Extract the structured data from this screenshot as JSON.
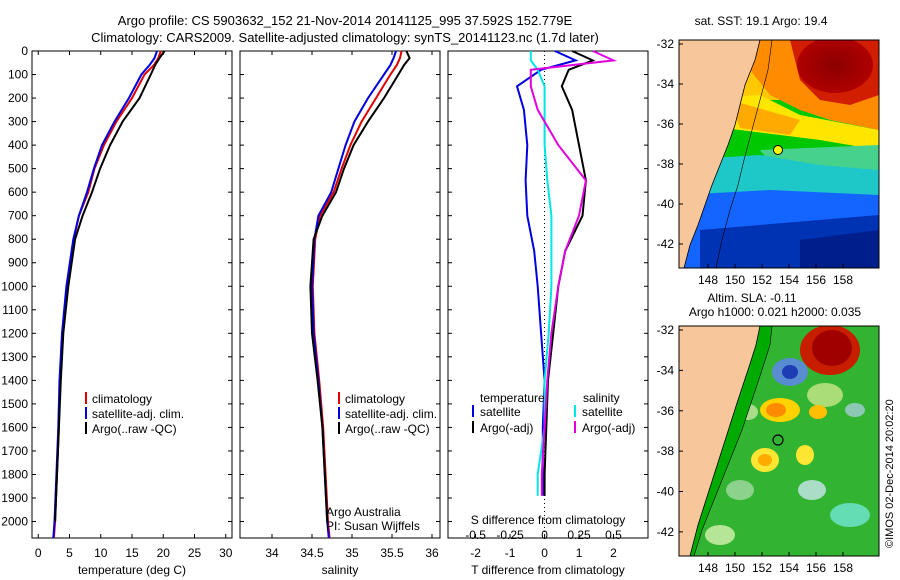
{
  "title_line1": "Argo profile: CS 5903632_152 21-Nov-2014 20141125_995 37.592S 152.779E",
  "title_line2": "Climatology: CARS2009. Satellite-adjusted climatology: synTS_20141123.nc (1.7d later)",
  "colors": {
    "climatology": "#e00000",
    "satellite": "#0000e0",
    "argo": "#000000",
    "sat_salinity": "#00e5e5",
    "argo_salinity": "#e000e0"
  },
  "chart_data": [
    {
      "type": "line",
      "id": "temperature",
      "xlabel": "temperature (deg C)",
      "xlim": [
        -1,
        31
      ],
      "xticks": [
        "0",
        "5",
        "10",
        "15",
        "20",
        "25",
        "30"
      ],
      "ylim": [
        0,
        2070
      ],
      "yticks": [
        "0",
        "100",
        "200",
        "300",
        "400",
        "500",
        "600",
        "700",
        "800",
        "900",
        "1000",
        "1100",
        "1200",
        "1300",
        "1400",
        "1500",
        "1600",
        "1700",
        "1800",
        "1900",
        "2000"
      ],
      "legend": [
        "climatology",
        "satellite-adj. clim.",
        "Argo(..raw -QC)"
      ],
      "series": [
        {
          "name": "climatology",
          "color": "#e00000",
          "x": [
            19.6,
            19.2,
            18.5,
            17.0,
            15.0,
            12.5,
            10.5,
            9.0,
            8.0,
            6.5,
            5.7,
            4.6,
            3.9,
            3.5,
            3.3,
            3.0,
            2.7,
            2.5
          ],
          "y": [
            0,
            30,
            60,
            100,
            200,
            300,
            400,
            500,
            600,
            700,
            800,
            1000,
            1200,
            1400,
            1600,
            1800,
            2000,
            2070
          ]
        },
        {
          "name": "satellite-adj. clim.",
          "color": "#0000e0",
          "x": [
            19.0,
            18.6,
            17.8,
            16.5,
            14.5,
            12.2,
            10.2,
            8.9,
            7.8,
            6.5,
            5.6,
            4.5,
            3.8,
            3.4,
            3.2,
            2.9,
            2.6,
            2.4
          ],
          "y": [
            0,
            30,
            60,
            100,
            200,
            300,
            400,
            500,
            600,
            700,
            800,
            1000,
            1200,
            1400,
            1600,
            1800,
            2000,
            2070
          ]
        },
        {
          "name": "Argo(..raw -QC)",
          "color": "#000000",
          "x": [
            20.2,
            19.4,
            18.7,
            18.0,
            16.2,
            13.5,
            11.5,
            9.9,
            8.6,
            7.1,
            5.9,
            4.8,
            4.0,
            3.6,
            3.3,
            3.0,
            2.7
          ],
          "y": [
            0,
            30,
            60,
            100,
            200,
            300,
            400,
            500,
            600,
            700,
            800,
            1000,
            1200,
            1400,
            1600,
            1800,
            2000
          ]
        }
      ]
    },
    {
      "type": "line",
      "id": "salinity",
      "xlabel": "salinity",
      "xlim": [
        33.6,
        36.1
      ],
      "xticks": [
        "34",
        "34.5",
        "35",
        "35.5",
        "36"
      ],
      "legend": [
        "climatology",
        "satellite-adj. clim.",
        "Argo(..raw -QC)"
      ],
      "annotation": [
        "Argo Australia",
        "PI: Susan Wijffels"
      ],
      "series": [
        {
          "name": "climatology",
          "color": "#e00000",
          "x": [
            35.62,
            35.6,
            35.56,
            35.48,
            35.3,
            35.12,
            34.98,
            34.87,
            34.77,
            34.6,
            34.54,
            34.51,
            34.53,
            34.59,
            34.64,
            34.67,
            34.7,
            34.72
          ],
          "y": [
            0,
            30,
            60,
            100,
            200,
            300,
            400,
            500,
            600,
            700,
            800,
            1000,
            1200,
            1400,
            1600,
            1800,
            2000,
            2070
          ]
        },
        {
          "name": "satellite-adj. clim.",
          "color": "#0000e0",
          "x": [
            35.55,
            35.52,
            35.48,
            35.4,
            35.2,
            35.03,
            34.92,
            34.83,
            34.74,
            34.58,
            34.53,
            34.5,
            34.52,
            34.58,
            34.63,
            34.66,
            34.69,
            34.71
          ],
          "y": [
            0,
            30,
            60,
            100,
            200,
            300,
            400,
            500,
            600,
            700,
            800,
            1000,
            1200,
            1400,
            1600,
            1800,
            2000,
            2070
          ]
        },
        {
          "name": "Argo(..raw -QC)",
          "color": "#000000",
          "x": [
            35.68,
            35.72,
            35.65,
            35.58,
            35.4,
            35.2,
            35.02,
            34.9,
            34.8,
            34.63,
            34.52,
            34.48,
            34.5,
            34.57,
            34.63,
            34.66,
            34.69
          ],
          "y": [
            0,
            30,
            60,
            100,
            200,
            300,
            400,
            500,
            600,
            700,
            800,
            1000,
            1200,
            1400,
            1600,
            1800,
            2000
          ]
        }
      ]
    },
    {
      "type": "line",
      "id": "differences",
      "xlabel": "T difference from climatology",
      "xlabel_top": "S difference from climatology",
      "xlim": [
        -2.8,
        3.0
      ],
      "xticks": [
        "-2",
        "-1",
        "0",
        "1",
        "2"
      ],
      "xticks_salinity": [
        "-0.5",
        "-0.25",
        "0",
        "0.25",
        "0.5"
      ],
      "legend_headers": [
        "temperature",
        "salinity"
      ],
      "legend_temperature": [
        "satellite",
        "Argo(-adj)"
      ],
      "legend_salinity": [
        "satellite",
        "Argo(-adj)"
      ],
      "series": [
        {
          "name": "temperature satellite",
          "color": "#0000e0",
          "x": [
            0.3,
            0.9,
            -0.1,
            -0.8,
            -0.6,
            -0.5,
            -0.55,
            -0.5,
            -0.3,
            -0.2,
            -0.1,
            0.0,
            -0.05,
            -0.05,
            -0.05
          ],
          "y": [
            0,
            40,
            80,
            150,
            250,
            400,
            550,
            700,
            850,
            1000,
            1200,
            1400,
            1600,
            1800,
            1890
          ]
        },
        {
          "name": "temperature Argo(-adj)",
          "color": "#000000",
          "x": [
            0.8,
            1.4,
            0.7,
            0.5,
            0.8,
            1.0,
            1.2,
            1.1,
            0.6,
            0.4,
            0.25,
            0.1,
            0.05,
            0.0,
            0.0
          ],
          "y": [
            0,
            40,
            80,
            150,
            250,
            400,
            550,
            700,
            850,
            1000,
            1200,
            1400,
            1600,
            1800,
            1890
          ]
        },
        {
          "name": "salinity satellite",
          "color": "#00e5e5",
          "x": [
            -0.1,
            -0.1,
            -0.05,
            0.0,
            0.0,
            0.0,
            0.02,
            0.05,
            0.05,
            0.05,
            0.03,
            0.0,
            0.0,
            -0.05,
            -0.05
          ],
          "y": [
            0,
            40,
            80,
            150,
            250,
            400,
            550,
            700,
            850,
            1000,
            1200,
            1400,
            1600,
            1800,
            1890
          ]
        },
        {
          "name": "salinity Argo(-adj)",
          "color": "#e000e0",
          "x": [
            0.35,
            0.5,
            -0.1,
            -0.1,
            -0.05,
            0.1,
            0.3,
            0.25,
            0.15,
            0.1,
            0.05,
            0.02,
            0.0,
            -0.02,
            -0.02
          ],
          "y": [
            0,
            40,
            80,
            150,
            250,
            400,
            550,
            700,
            850,
            1000,
            1200,
            1400,
            1600,
            1800,
            1890
          ]
        }
      ]
    }
  ],
  "map_top": {
    "title": "sat. SST: 19.1  Argo: 19.4",
    "yticks": [
      "-32",
      "-34",
      "-36",
      "-38",
      "-40",
      "-42"
    ],
    "xticks": [
      "148",
      "150",
      "152",
      "154",
      "156",
      "158"
    ]
  },
  "map_bottom": {
    "title1": "Altim. SLA: -0.11",
    "title2": "Argo h1000: 0.021 h2000: 0.035",
    "yticks": [
      "-32",
      "-34",
      "-36",
      "-38",
      "-40",
      "-42"
    ],
    "xticks": [
      "148",
      "150",
      "152",
      "154",
      "156",
      "158"
    ]
  },
  "credit": "©IMOS 02-Dec-2014 20:02:20"
}
